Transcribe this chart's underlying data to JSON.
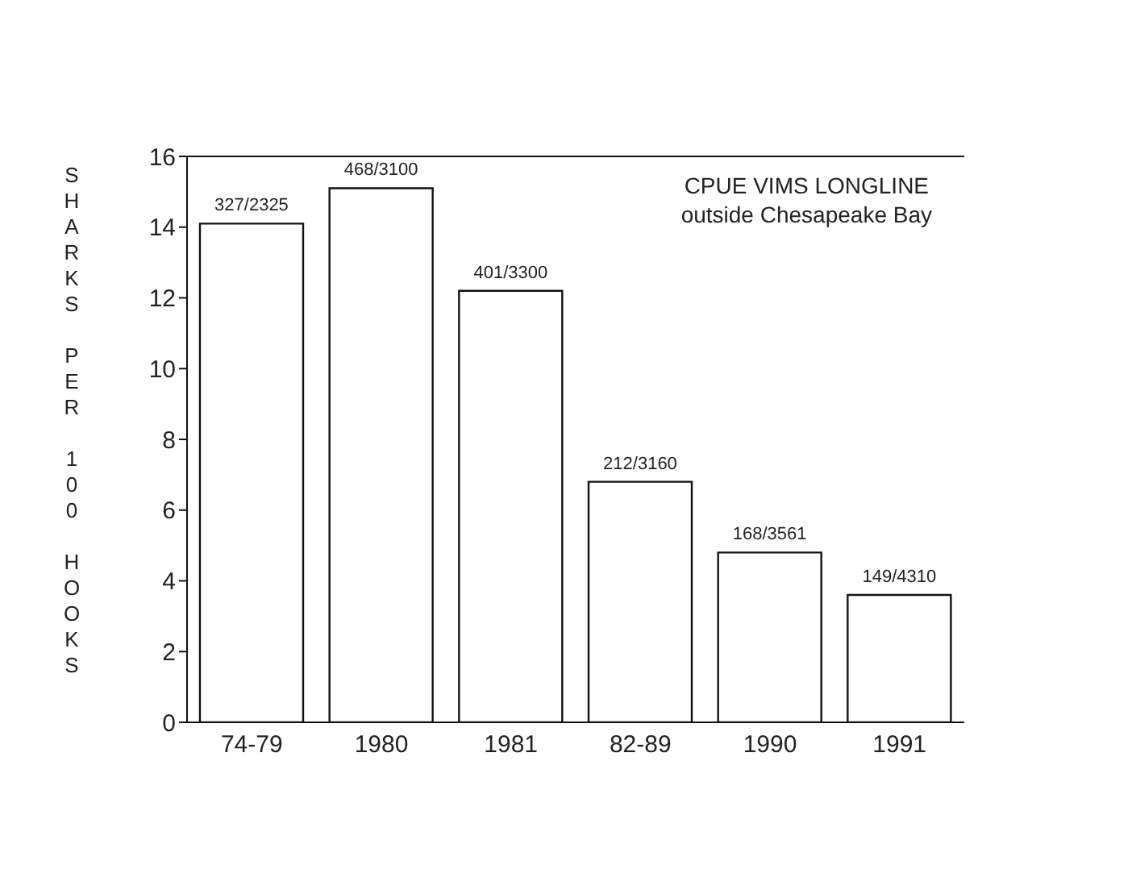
{
  "chart_data": {
    "type": "bar",
    "title": "CPUE VIMS LONGLINE",
    "subtitle": "outside Chesapeake Bay",
    "ylabel": "SHARKS PER 100 HOOKS",
    "categories": [
      "74-79",
      "1980",
      "1981",
      "82-89",
      "1990",
      "1991"
    ],
    "values": [
      14.1,
      15.1,
      12.2,
      6.8,
      4.8,
      3.6
    ],
    "value_labels": [
      "327/2325",
      "468/3100",
      "401/3300",
      "212/3160",
      "168/3561",
      "149/4310"
    ],
    "color": "#ffffff",
    "ylim": [
      0,
      16
    ],
    "yticks": [
      0,
      2,
      4,
      6,
      8,
      10,
      12,
      14,
      16
    ]
  }
}
